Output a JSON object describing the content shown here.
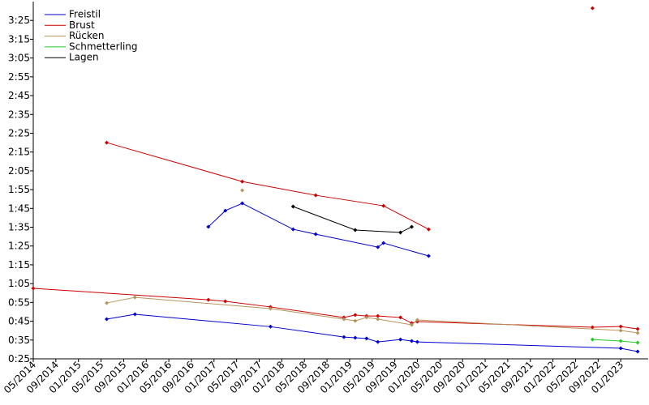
{
  "chart_data": {
    "type": "line",
    "xlim": [
      "2014-05",
      "2023-05"
    ],
    "ylim": [
      25,
      215
    ],
    "xticks": [
      {
        "value": "2014-05",
        "label": "05/2014"
      },
      {
        "value": "2014-09",
        "label": "09/2014"
      },
      {
        "value": "2015-01",
        "label": "01/2015"
      },
      {
        "value": "2015-05",
        "label": "05/2015"
      },
      {
        "value": "2015-09",
        "label": "09/2015"
      },
      {
        "value": "2016-01",
        "label": "01/2016"
      },
      {
        "value": "2016-05",
        "label": "05/2016"
      },
      {
        "value": "2016-09",
        "label": "09/2016"
      },
      {
        "value": "2017-01",
        "label": "01/2017"
      },
      {
        "value": "2017-05",
        "label": "05/2017"
      },
      {
        "value": "2017-09",
        "label": "09/2017"
      },
      {
        "value": "2018-01",
        "label": "01/2018"
      },
      {
        "value": "2018-05",
        "label": "05/2018"
      },
      {
        "value": "2018-09",
        "label": "09/2018"
      },
      {
        "value": "2019-01",
        "label": "01/2019"
      },
      {
        "value": "2019-05",
        "label": "05/2019"
      },
      {
        "value": "2019-09",
        "label": "09/2019"
      },
      {
        "value": "2020-01",
        "label": "01/2020"
      },
      {
        "value": "2020-05",
        "label": "05/2020"
      },
      {
        "value": "2020-09",
        "label": "09/2020"
      },
      {
        "value": "2021-01",
        "label": "01/2021"
      },
      {
        "value": "2021-05",
        "label": "05/2021"
      },
      {
        "value": "2021-09",
        "label": "09/2021"
      },
      {
        "value": "2022-01",
        "label": "01/2022"
      },
      {
        "value": "2022-05",
        "label": "05/2022"
      },
      {
        "value": "2022-09",
        "label": "09/2022"
      },
      {
        "value": "2023-01",
        "label": "01/2023"
      }
    ],
    "yticks": [
      {
        "value": 25,
        "label": "0:25"
      },
      {
        "value": 35,
        "label": "0:35"
      },
      {
        "value": 45,
        "label": "0:45"
      },
      {
        "value": 55,
        "label": "0:55"
      },
      {
        "value": 65,
        "label": "1:05"
      },
      {
        "value": 75,
        "label": "1:15"
      },
      {
        "value": 85,
        "label": "1:25"
      },
      {
        "value": 95,
        "label": "1:35"
      },
      {
        "value": 105,
        "label": "1:45"
      },
      {
        "value": 115,
        "label": "1:55"
      },
      {
        "value": 125,
        "label": "2:05"
      },
      {
        "value": 135,
        "label": "2:15"
      },
      {
        "value": 145,
        "label": "2:25"
      },
      {
        "value": 155,
        "label": "2:35"
      },
      {
        "value": 165,
        "label": "2:45"
      },
      {
        "value": 175,
        "label": "2:55"
      },
      {
        "value": 185,
        "label": "3:05"
      },
      {
        "value": 195,
        "label": "3:15"
      },
      {
        "value": 205,
        "label": "3:25"
      }
    ],
    "legend": "upper left",
    "series": [
      {
        "name": "Freistil",
        "color": "#0000cc",
        "lines": [
          {
            "x": [
              "2015-06",
              "2015-11",
              "2017-11",
              "2018-12",
              "2019-02",
              "2019-04",
              "2019-06",
              "2019-10",
              "2019-12",
              "2020-01",
              "2023-01",
              "2023-04"
            ],
            "values": [
              46.1,
              48.7,
              42.1,
              36.6,
              36.2,
              35.8,
              34.0,
              35.3,
              34.5,
              34.0,
              30.6,
              28.9
            ]
          },
          {
            "x": [
              "2016-12",
              "2017-03",
              "2017-06",
              "2018-03",
              "2018-07",
              "2019-06",
              "2019-07",
              "2020-03"
            ],
            "values": [
              95.2,
              103.8,
              107.7,
              93.9,
              91.3,
              84.4,
              86.6,
              79.7
            ]
          }
        ]
      },
      {
        "name": "Brust",
        "color": "#cc0000",
        "lines": [
          {
            "x": [
              "2014-05",
              "2016-12",
              "2017-03",
              "2017-11",
              "2018-12",
              "2019-02",
              "2019-04",
              "2019-06",
              "2019-10",
              "2019-12",
              "2020-01",
              "2022-08",
              "2023-01",
              "2023-04"
            ],
            "values": [
              62.5,
              56.4,
              55.6,
              52.6,
              47.0,
              48.3,
              47.8,
              47.8,
              47.0,
              44.0,
              44.8,
              41.8,
              42.2,
              40.9
            ]
          },
          {
            "x": [
              "2015-06",
              "2017-06",
              "2018-07",
              "2019-07",
              "2020-03"
            ],
            "values": [
              140.0,
              119.3,
              112.0,
              106.4,
              93.9
            ]
          },
          {
            "x": [
              "2022-08"
            ],
            "values": [
              211.5
            ]
          }
        ]
      },
      {
        "name": "Rücken",
        "color": "#b8935a",
        "lines": [
          {
            "x": [
              "2015-06",
              "2015-11",
              "2017-11",
              "2018-12",
              "2019-02",
              "2019-04",
              "2019-06",
              "2019-12",
              "2020-01",
              "2023-01",
              "2023-04"
            ],
            "values": [
              54.7,
              57.7,
              51.7,
              46.1,
              45.2,
              47.0,
              46.1,
              43.1,
              45.7,
              40.1,
              38.8
            ]
          },
          {
            "x": [
              "2017-06"
            ],
            "values": [
              114.6
            ]
          }
        ]
      },
      {
        "name": "Schmetterling",
        "color": "#22cc22",
        "lines": [
          {
            "x": [
              "2022-08",
              "2023-01",
              "2023-04"
            ],
            "values": [
              35.3,
              34.5,
              33.6
            ]
          }
        ]
      },
      {
        "name": "Lagen",
        "color": "#000000",
        "lines": [
          {
            "x": [
              "2018-03",
              "2019-02",
              "2019-10",
              "2019-12"
            ],
            "values": [
              106.0,
              93.5,
              92.2,
              95.2
            ]
          }
        ]
      }
    ]
  }
}
